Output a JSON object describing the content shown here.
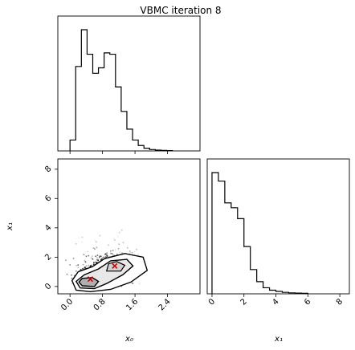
{
  "chart_data": {
    "type": "corner",
    "title": "VBMC iteration 8",
    "variables": [
      "x₀",
      "x₁"
    ],
    "panels": {
      "x0_hist": {
        "type": "histogram",
        "xlim": [
          -0.3,
          3.2
        ],
        "bin_edges": [
          0.0,
          0.14,
          0.28,
          0.42,
          0.56,
          0.7,
          0.84,
          0.98,
          1.12,
          1.26,
          1.4,
          1.54,
          1.68,
          1.82,
          1.96,
          2.1,
          2.24,
          2.38,
          2.52
        ],
        "counts": [
          8,
          62,
          89,
          71,
          57,
          61,
          72,
          71,
          47,
          29,
          16,
          8,
          4,
          2,
          1,
          0.6,
          0.4,
          0.2
        ]
      },
      "x1_hist": {
        "type": "histogram",
        "xlim": [
          -0.3,
          8.6
        ],
        "bin_edges": [
          0.0,
          0.4,
          0.8,
          1.2,
          1.6,
          2.0,
          2.4,
          2.8,
          3.2,
          3.6,
          4.0,
          4.4,
          4.8,
          5.2,
          5.6,
          6.0
        ],
        "counts": [
          100,
          93,
          75,
          71,
          62,
          39,
          20,
          10,
          5,
          3,
          2,
          1.2,
          0.8,
          0.6,
          0.4
        ]
      },
      "joint": {
        "type": "scatter-density",
        "xlabel": "x₀",
        "ylabel": "x₁",
        "xlim": [
          -0.3,
          3.2
        ],
        "ylim": [
          -0.5,
          8.7
        ],
        "xticks": [
          "0.0",
          "0.8",
          "1.6",
          "2.4"
        ],
        "yticks": [
          "0",
          "2",
          "4",
          "6",
          "8"
        ],
        "markers": [
          {
            "x": 1.1,
            "y": 1.4,
            "color": "#cc0000"
          },
          {
            "x": 0.5,
            "y": 0.5,
            "color": "#cc0000"
          }
        ]
      }
    },
    "x0_ticks": [
      "0.0",
      "0.8",
      "1.6",
      "2.4"
    ],
    "x1_ticks": [
      "0",
      "2",
      "4",
      "6",
      "8"
    ]
  }
}
